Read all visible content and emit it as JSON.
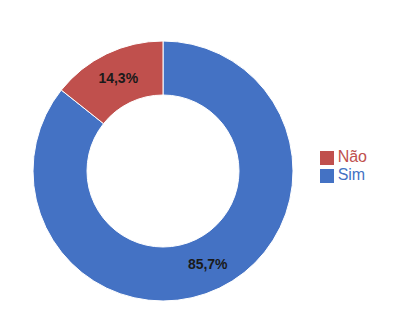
{
  "chart_data": {
    "type": "pie",
    "categories": [
      "Sim",
      "Não"
    ],
    "values": [
      85.7,
      14.3
    ],
    "value_labels": [
      "85,7%",
      "14,3%"
    ],
    "colors": [
      "#4472C4",
      "#C0504D"
    ],
    "data_labels": true,
    "legend": "right"
  }
}
